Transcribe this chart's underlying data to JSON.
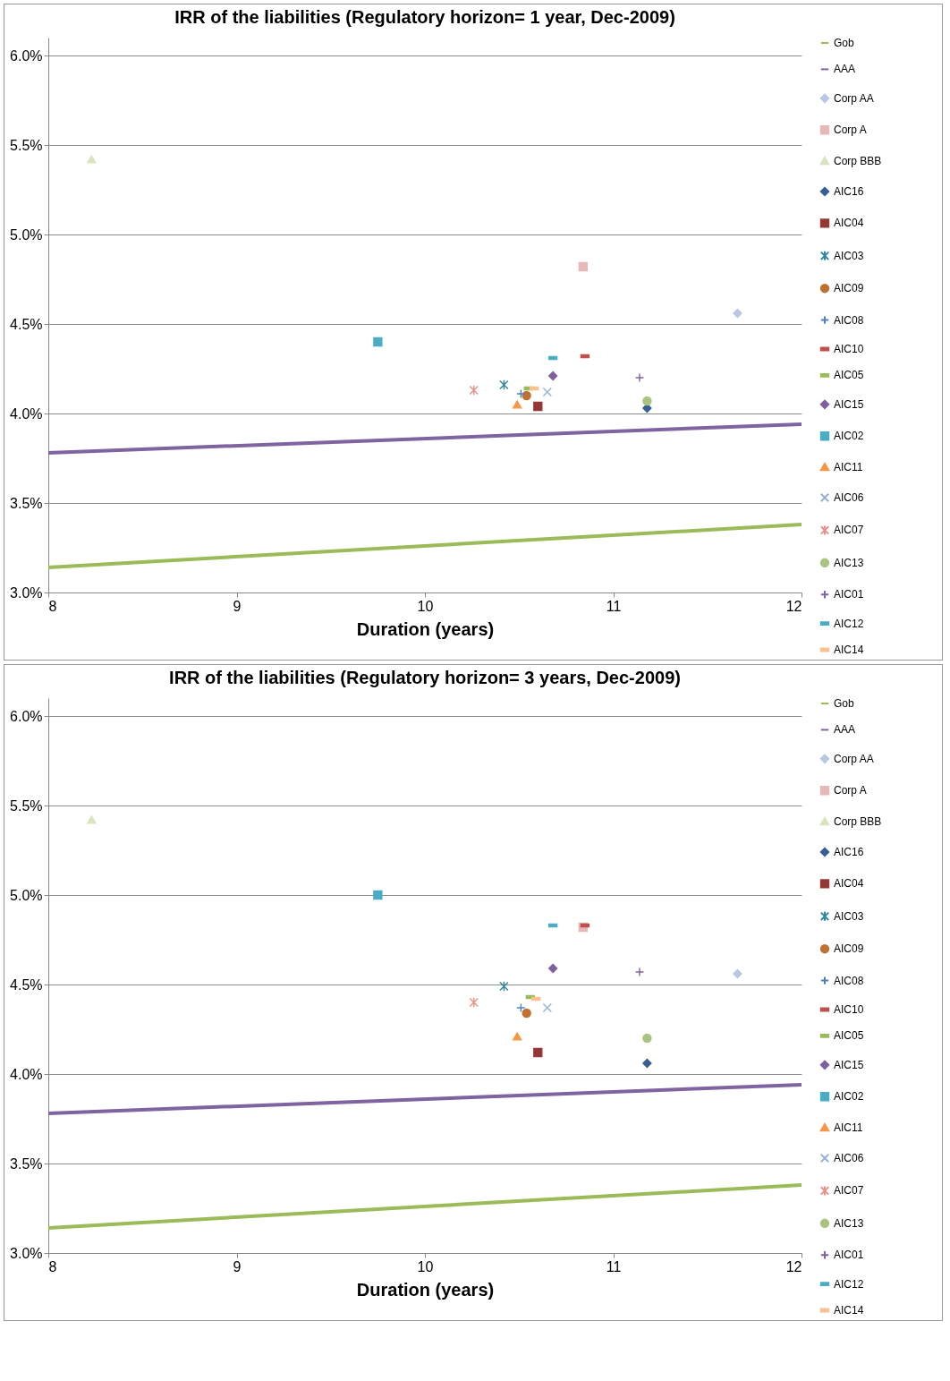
{
  "chart_data": [
    {
      "type": "scatter",
      "title": "IRR of the liabilities (Regulatory horizon= 1 year, Dec-2009)",
      "xlabel": "Duration (years)",
      "xlim": [
        8,
        12
      ],
      "xticks": [
        8,
        9,
        10,
        11,
        12
      ],
      "ylim": [
        3,
        6.1
      ],
      "yticks": [
        {
          "value": 3,
          "label": "3.0%"
        },
        {
          "value": 3.5,
          "label": "3.5%"
        },
        {
          "value": 4,
          "label": "4.0%"
        },
        {
          "value": 4.5,
          "label": "4.5%"
        },
        {
          "value": 5,
          "label": "5.0%"
        },
        {
          "value": 5.5,
          "label": "5.5%"
        },
        {
          "value": 6,
          "label": "6.0%"
        }
      ],
      "grid": "y",
      "legend": "right",
      "series": [
        {
          "name": "Gob",
          "type": "line",
          "color": "#9bbb59",
          "x": [
            8,
            12
          ],
          "values": [
            3.14,
            3.38
          ]
        },
        {
          "name": "AAA",
          "type": "line",
          "color": "#8064a2",
          "x": [
            8,
            12
          ],
          "values": [
            3.78,
            3.94
          ]
        },
        {
          "name": "Corp AA",
          "color": "#b9c7e3",
          "marker": "diamond",
          "x": [
            11.66
          ],
          "values": [
            4.56
          ]
        },
        {
          "name": "Corp A",
          "color": "#e6b9b8",
          "marker": "square",
          "x": [
            10.84
          ],
          "values": [
            4.82
          ]
        },
        {
          "name": "Corp BBB",
          "color": "#d7e4bd",
          "marker": "triangle",
          "x": [
            8.23
          ],
          "values": [
            5.42
          ]
        },
        {
          "name": "AIC16",
          "color": "#376092",
          "marker": "diamond",
          "x": [
            11.18
          ],
          "values": [
            4.03
          ]
        },
        {
          "name": "AIC04",
          "color": "#953735",
          "marker": "square",
          "x": [
            10.6
          ],
          "values": [
            4.04
          ]
        },
        {
          "name": "AIC03",
          "color": "#31859c",
          "marker": "cross",
          "x": [
            10.42
          ],
          "values": [
            4.16
          ]
        },
        {
          "name": "AIC09",
          "color": "#c0712e",
          "marker": "circle",
          "x": [
            10.54
          ],
          "values": [
            4.1
          ]
        },
        {
          "name": "AIC08",
          "color": "#4f81bd",
          "marker": "plus",
          "x": [
            10.51
          ],
          "values": [
            4.11
          ]
        },
        {
          "name": "AIC10",
          "color": "#c0504d",
          "x": [
            10.85
          ],
          "values": [
            4.32
          ]
        },
        {
          "name": "AIC05",
          "color": "#9bbb59",
          "x": [
            10.55
          ],
          "values": [
            4.14
          ]
        },
        {
          "name": "AIC15",
          "color": "#7f5f9f",
          "marker": "diamond",
          "x": [
            10.68
          ],
          "values": [
            4.21
          ]
        },
        {
          "name": "AIC02",
          "color": "#4bacc6",
          "marker": "square",
          "x": [
            9.75
          ],
          "values": [
            4.4
          ]
        },
        {
          "name": "AIC11",
          "color": "#f79646",
          "marker": "triangle",
          "x": [
            10.49
          ],
          "values": [
            4.05
          ]
        },
        {
          "name": "AIC06",
          "color": "#95b3d7",
          "marker": "x",
          "x": [
            10.65
          ],
          "values": [
            4.12
          ]
        },
        {
          "name": "AIC07",
          "color": "#e6908d",
          "marker": "cross",
          "x": [
            10.26
          ],
          "values": [
            4.13
          ]
        },
        {
          "name": "AIC13",
          "color": "#a9c47f",
          "marker": "circle",
          "x": [
            11.18
          ],
          "values": [
            4.07
          ]
        },
        {
          "name": "AIC01",
          "color": "#8064a2",
          "marker": "plus",
          "x": [
            11.14
          ],
          "values": [
            4.2
          ]
        },
        {
          "name": "AIC12",
          "color": "#4bacc6",
          "x": [
            10.68
          ],
          "values": [
            4.31
          ]
        },
        {
          "name": "AIC14",
          "color": "#fac090",
          "x": [
            10.58
          ],
          "values": [
            4.14
          ]
        }
      ]
    },
    {
      "type": "scatter",
      "title": "IRR of the liabilities (Regulatory horizon= 3 years, Dec-2009)",
      "xlabel": "Duration (years)",
      "xlim": [
        8,
        12
      ],
      "xticks": [
        8,
        9,
        10,
        11,
        12
      ],
      "ylim": [
        3,
        6.1
      ],
      "yticks": [
        {
          "value": 3,
          "label": "3.0%"
        },
        {
          "value": 3.5,
          "label": "3.5%"
        },
        {
          "value": 4,
          "label": "4.0%"
        },
        {
          "value": 4.5,
          "label": "4.5%"
        },
        {
          "value": 5,
          "label": "5.0%"
        },
        {
          "value": 5.5,
          "label": "5.5%"
        },
        {
          "value": 6,
          "label": "6.0%"
        }
      ],
      "grid": "y",
      "legend": "right",
      "series": [
        {
          "name": "Gob",
          "type": "line",
          "color": "#9bbb59",
          "x": [
            8,
            12
          ],
          "values": [
            3.14,
            3.38
          ]
        },
        {
          "name": "AAA",
          "type": "line",
          "color": "#8064a2",
          "x": [
            8,
            12
          ],
          "values": [
            3.78,
            3.94
          ]
        },
        {
          "name": "Corp AA",
          "color": "#b9c7e3",
          "marker": "diamond",
          "x": [
            11.66
          ],
          "values": [
            4.56
          ]
        },
        {
          "name": "Corp A",
          "color": "#e6b9b8",
          "marker": "square",
          "x": [
            10.84
          ],
          "values": [
            4.82
          ]
        },
        {
          "name": "Corp BBB",
          "color": "#d7e4bd",
          "marker": "triangle",
          "x": [
            8.23
          ],
          "values": [
            5.42
          ]
        },
        {
          "name": "AIC16",
          "color": "#376092",
          "marker": "diamond",
          "x": [
            11.18
          ],
          "values": [
            4.06
          ]
        },
        {
          "name": "AIC04",
          "color": "#953735",
          "marker": "square",
          "x": [
            10.6
          ],
          "values": [
            4.12
          ]
        },
        {
          "name": "AIC03",
          "color": "#31859c",
          "marker": "cross",
          "x": [
            10.42
          ],
          "values": [
            4.49
          ]
        },
        {
          "name": "AIC09",
          "color": "#c0712e",
          "marker": "circle",
          "x": [
            10.54
          ],
          "values": [
            4.34
          ]
        },
        {
          "name": "AIC08",
          "color": "#4f81bd",
          "marker": "plus",
          "x": [
            10.51
          ],
          "values": [
            4.37
          ]
        },
        {
          "name": "AIC10",
          "color": "#c0504d",
          "x": [
            10.85
          ],
          "values": [
            4.83
          ]
        },
        {
          "name": "AIC05",
          "color": "#9bbb59",
          "x": [
            10.56
          ],
          "values": [
            4.43
          ]
        },
        {
          "name": "AIC15",
          "color": "#7f5f9f",
          "marker": "diamond",
          "x": [
            10.68
          ],
          "values": [
            4.59
          ]
        },
        {
          "name": "AIC02",
          "color": "#4bacc6",
          "marker": "square",
          "x": [
            9.75
          ],
          "values": [
            5.0
          ]
        },
        {
          "name": "AIC11",
          "color": "#f79646",
          "marker": "triangle",
          "x": [
            10.49
          ],
          "values": [
            4.21
          ]
        },
        {
          "name": "AIC06",
          "color": "#95b3d7",
          "marker": "x",
          "x": [
            10.65
          ],
          "values": [
            4.37
          ]
        },
        {
          "name": "AIC07",
          "color": "#e6908d",
          "marker": "cross",
          "x": [
            10.26
          ],
          "values": [
            4.4
          ]
        },
        {
          "name": "AIC13",
          "color": "#a9c47f",
          "marker": "circle",
          "x": [
            11.18
          ],
          "values": [
            4.2
          ]
        },
        {
          "name": "AIC01",
          "color": "#8064a2",
          "marker": "plus",
          "x": [
            11.14
          ],
          "values": [
            4.57
          ]
        },
        {
          "name": "AIC12",
          "color": "#4bacc6",
          "x": [
            10.68
          ],
          "values": [
            4.83
          ]
        },
        {
          "name": "AIC14",
          "color": "#fac090",
          "x": [
            10.59
          ],
          "values": [
            4.42
          ]
        }
      ]
    }
  ]
}
